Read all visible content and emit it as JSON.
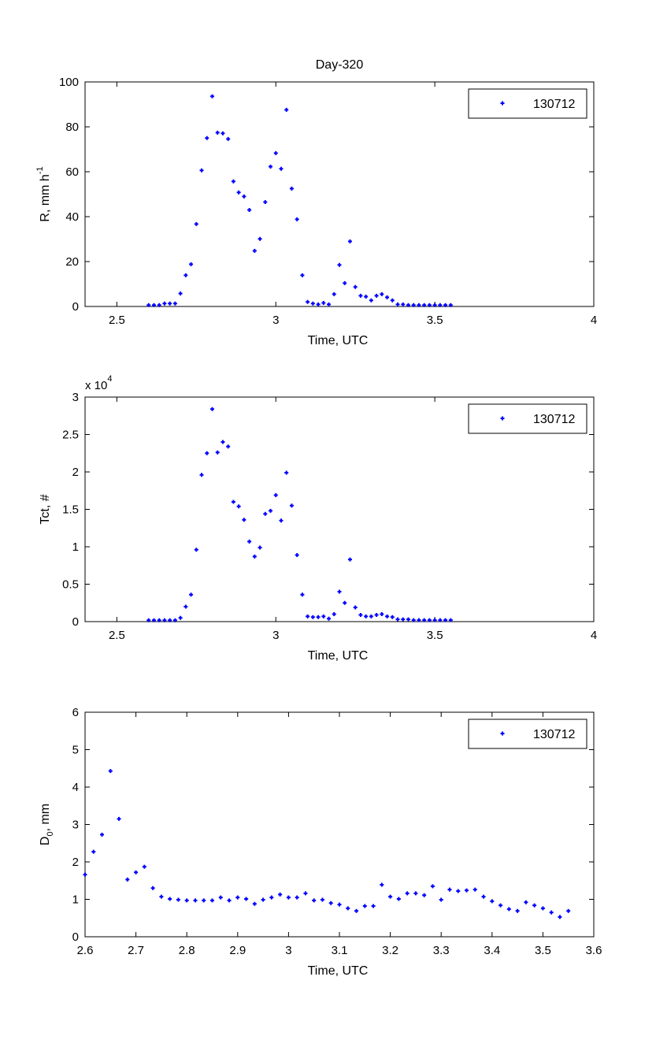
{
  "chart_data": [
    {
      "type": "scatter",
      "title": "Day-320",
      "xlabel": "Time, UTC",
      "ylabel": "R, mm h",
      "ylabel_sup": "-1",
      "xlim": [
        2.4,
        4
      ],
      "ylim": [
        0,
        100
      ],
      "xticks": [
        "2.5",
        "3",
        "3.5",
        "4"
      ],
      "xtick_values": [
        2.5,
        3,
        3.5,
        4
      ],
      "yticks": [
        "0",
        "20",
        "40",
        "60",
        "80",
        "100"
      ],
      "ytick_values": [
        0,
        20,
        40,
        60,
        80,
        100
      ],
      "legend": {
        "label": "130712",
        "placement": "top-right"
      },
      "marker_color": "#0000ff",
      "x_start": 2.6,
      "x_step_minutes": 1,
      "values": [
        0.6,
        0.6,
        0.6,
        1.3,
        1.3,
        1.3,
        5.8,
        13.9,
        18.8,
        36.7,
        60.6,
        75.0,
        93.6,
        77.4,
        77.1,
        74.6,
        55.7,
        50.8,
        49.0,
        43.0,
        24.8,
        30.1,
        46.5,
        62.3,
        68.3,
        61.3,
        87.6,
        52.5,
        38.8,
        13.9,
        2.0,
        1.3,
        0.9,
        1.6,
        0.9,
        5.5,
        18.5,
        10.4,
        29.0,
        8.7,
        4.8,
        4.4,
        2.7,
        4.8,
        5.5,
        4.1,
        2.7,
        0.9,
        0.9,
        0.6,
        0.6,
        0.6,
        0.6,
        0.6,
        0.6,
        0.6,
        0.6,
        0.6
      ]
    },
    {
      "type": "scatter",
      "xlabel": "Time, UTC",
      "ylabel": "Tct, #",
      "y_multiplier": "x 10",
      "y_multiplier_exp": "4",
      "xlim": [
        2.4,
        4
      ],
      "ylim": [
        0,
        30000
      ],
      "xticks": [
        "2.5",
        "3",
        "3.5",
        "4"
      ],
      "xtick_values": [
        2.5,
        3,
        3.5,
        4
      ],
      "yticks": [
        "0",
        "0.5",
        "1",
        "1.5",
        "2",
        "2.5",
        "3"
      ],
      "ytick_values": [
        0,
        5000,
        10000,
        15000,
        20000,
        25000,
        30000
      ],
      "legend": {
        "label": "130712",
        "placement": "top-right"
      },
      "marker_color": "#0000ff",
      "x_start": 2.6,
      "x_step_minutes": 1,
      "values": [
        180,
        180,
        180,
        180,
        180,
        180,
        500,
        2000,
        3600,
        9600,
        19600,
        22500,
        28400,
        22600,
        24000,
        23400,
        16000,
        15400,
        13600,
        10700,
        8700,
        9900,
        14400,
        14800,
        16900,
        13500,
        19900,
        15500,
        8900,
        3600,
        700,
        600,
        600,
        700,
        400,
        1000,
        4000,
        2500,
        8300,
        1900,
        900,
        700,
        700,
        900,
        1000,
        700,
        600,
        300,
        300,
        300,
        200,
        200,
        200,
        200,
        200,
        200,
        200,
        200
      ]
    },
    {
      "type": "scatter",
      "xlabel": "Time, UTC",
      "ylabel": "D",
      "ylabel_sub": "0",
      "ylabel_suffix": ", mm",
      "xlim": [
        2.6,
        3.6
      ],
      "ylim": [
        0,
        6
      ],
      "xticks": [
        "2.6",
        "2.7",
        "2.8",
        "2.9",
        "3",
        "3.1",
        "3.2",
        "3.3",
        "3.4",
        "3.5",
        "3.6"
      ],
      "xtick_values": [
        2.6,
        2.7,
        2.8,
        2.9,
        3.0,
        3.1,
        3.2,
        3.3,
        3.4,
        3.5,
        3.6
      ],
      "yticks": [
        "0",
        "1",
        "2",
        "3",
        "4",
        "5",
        "6"
      ],
      "ytick_values": [
        0,
        1,
        2,
        3,
        4,
        5,
        6
      ],
      "legend": {
        "label": "130712",
        "placement": "top-right"
      },
      "marker_color": "#0000ff",
      "x_start": 2.6,
      "x_step_minutes": 1,
      "values": [
        1.66,
        2.27,
        2.73,
        4.43,
        3.15,
        1.53,
        1.72,
        1.87,
        1.3,
        1.07,
        1.01,
        0.99,
        0.97,
        0.97,
        0.97,
        0.97,
        1.05,
        0.97,
        1.05,
        1.01,
        0.88,
        0.99,
        1.05,
        1.13,
        1.05,
        1.05,
        1.16,
        0.97,
        0.99,
        0.9,
        0.86,
        0.76,
        0.69,
        0.82,
        0.82,
        1.39,
        1.07,
        1.01,
        1.16,
        1.16,
        1.11,
        1.35,
        0.99,
        1.26,
        1.22,
        1.24,
        1.26,
        1.07,
        0.95,
        0.84,
        0.74,
        0.69,
        0.92,
        0.84,
        0.76,
        0.65,
        0.53,
        0.69
      ]
    }
  ]
}
